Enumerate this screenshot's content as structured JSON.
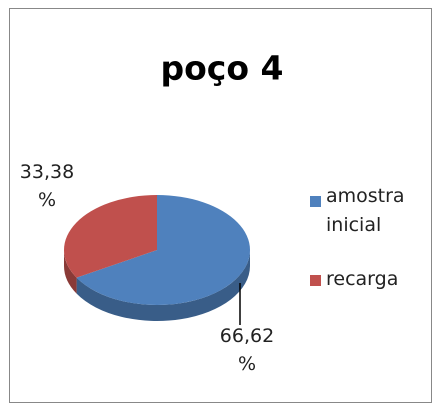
{
  "chart_data": {
    "type": "pie",
    "title": "poço 4",
    "categories": [
      "amostra inicial",
      "recarga"
    ],
    "values": [
      66.62,
      33.38
    ],
    "value_labels": [
      "66,62 %",
      "33,38 %"
    ],
    "colors": [
      "#4f81bd",
      "#c0504d"
    ],
    "legend": "right"
  }
}
